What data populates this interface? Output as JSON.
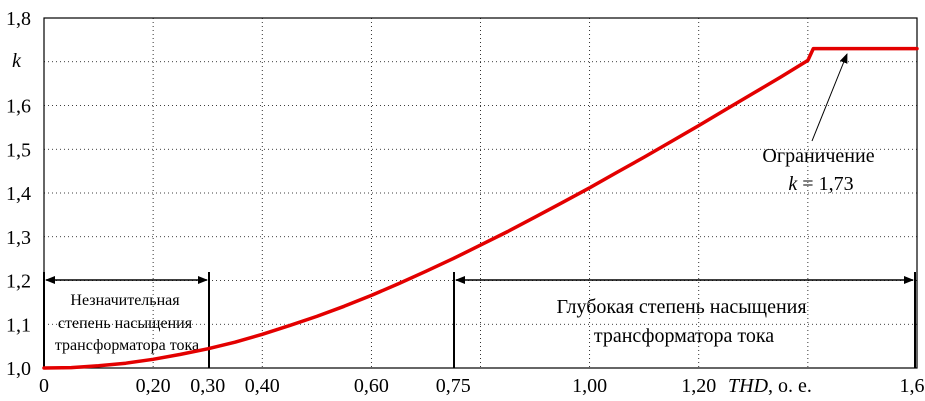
{
  "chart_data": {
    "type": "line",
    "title": "",
    "ylabel": "k",
    "xlabel_italic": "THD",
    "xlabel_unit": ", о. е.",
    "xlim": [
      0,
      1.6
    ],
    "ylim": [
      1.0,
      1.8
    ],
    "x_ticks": [
      {
        "value": 0,
        "label": "0"
      },
      {
        "value": 0.2,
        "label": "0,20"
      },
      {
        "value": 0.3,
        "label": "0,30"
      },
      {
        "value": 0.4,
        "label": "0,40"
      },
      {
        "value": 0.6,
        "label": "0,60"
      },
      {
        "value": 0.75,
        "label": "0,75"
      },
      {
        "value": 1.0,
        "label": "1,00"
      },
      {
        "value": 1.2,
        "label": "1,20"
      },
      {
        "value": 1.6,
        "label": "1,60"
      }
    ],
    "x_grid": [
      0.2,
      0.4,
      0.6,
      0.8,
      1.0,
      1.2,
      1.4
    ],
    "y_ticks": [
      {
        "value": 1.0,
        "label": "1,0"
      },
      {
        "value": 1.1,
        "label": "1,1"
      },
      {
        "value": 1.2,
        "label": "1,2"
      },
      {
        "value": 1.3,
        "label": "1,3"
      },
      {
        "value": 1.4,
        "label": "1,4"
      },
      {
        "value": 1.5,
        "label": "1,5"
      },
      {
        "value": 1.6,
        "label": "1,6"
      },
      {
        "value": 1.8,
        "label": "1,8"
      }
    ],
    "y_grid": [
      1.1,
      1.2,
      1.3,
      1.4,
      1.5,
      1.6,
      1.7
    ],
    "grid": true,
    "series": [
      {
        "color": "#e30000",
        "x": [
          0,
          0.05,
          0.1,
          0.15,
          0.2,
          0.25,
          0.3,
          0.35,
          0.4,
          0.45,
          0.5,
          0.55,
          0.6,
          0.65,
          0.7,
          0.75,
          0.8,
          0.85,
          0.9,
          0.95,
          1.0,
          1.05,
          1.1,
          1.15,
          1.2,
          1.25,
          1.3,
          1.35,
          1.4,
          1.41,
          1.6
        ],
        "y": [
          1.0,
          1.001,
          1.005,
          1.011,
          1.02,
          1.031,
          1.044,
          1.059,
          1.077,
          1.097,
          1.118,
          1.141,
          1.166,
          1.193,
          1.221,
          1.25,
          1.281,
          1.312,
          1.345,
          1.378,
          1.412,
          1.447,
          1.482,
          1.518,
          1.554,
          1.591,
          1.628,
          1.665,
          1.703,
          1.73,
          1.73
        ]
      }
    ],
    "annotations": {
      "limit": {
        "line1": "Ограничение",
        "line2_italic": "k",
        "line2_rest": " = 1,73"
      },
      "region_low": {
        "text": [
          "Незначительная",
          "степень насыщения",
          "трансформатора тока"
        ],
        "x_start": 0,
        "x_end": 0.3
      },
      "region_high": {
        "text": [
          "Глубокая степень насыщения",
          "трансформатора тока"
        ],
        "x_start": 0.75,
        "x_end": 1.6
      }
    }
  }
}
